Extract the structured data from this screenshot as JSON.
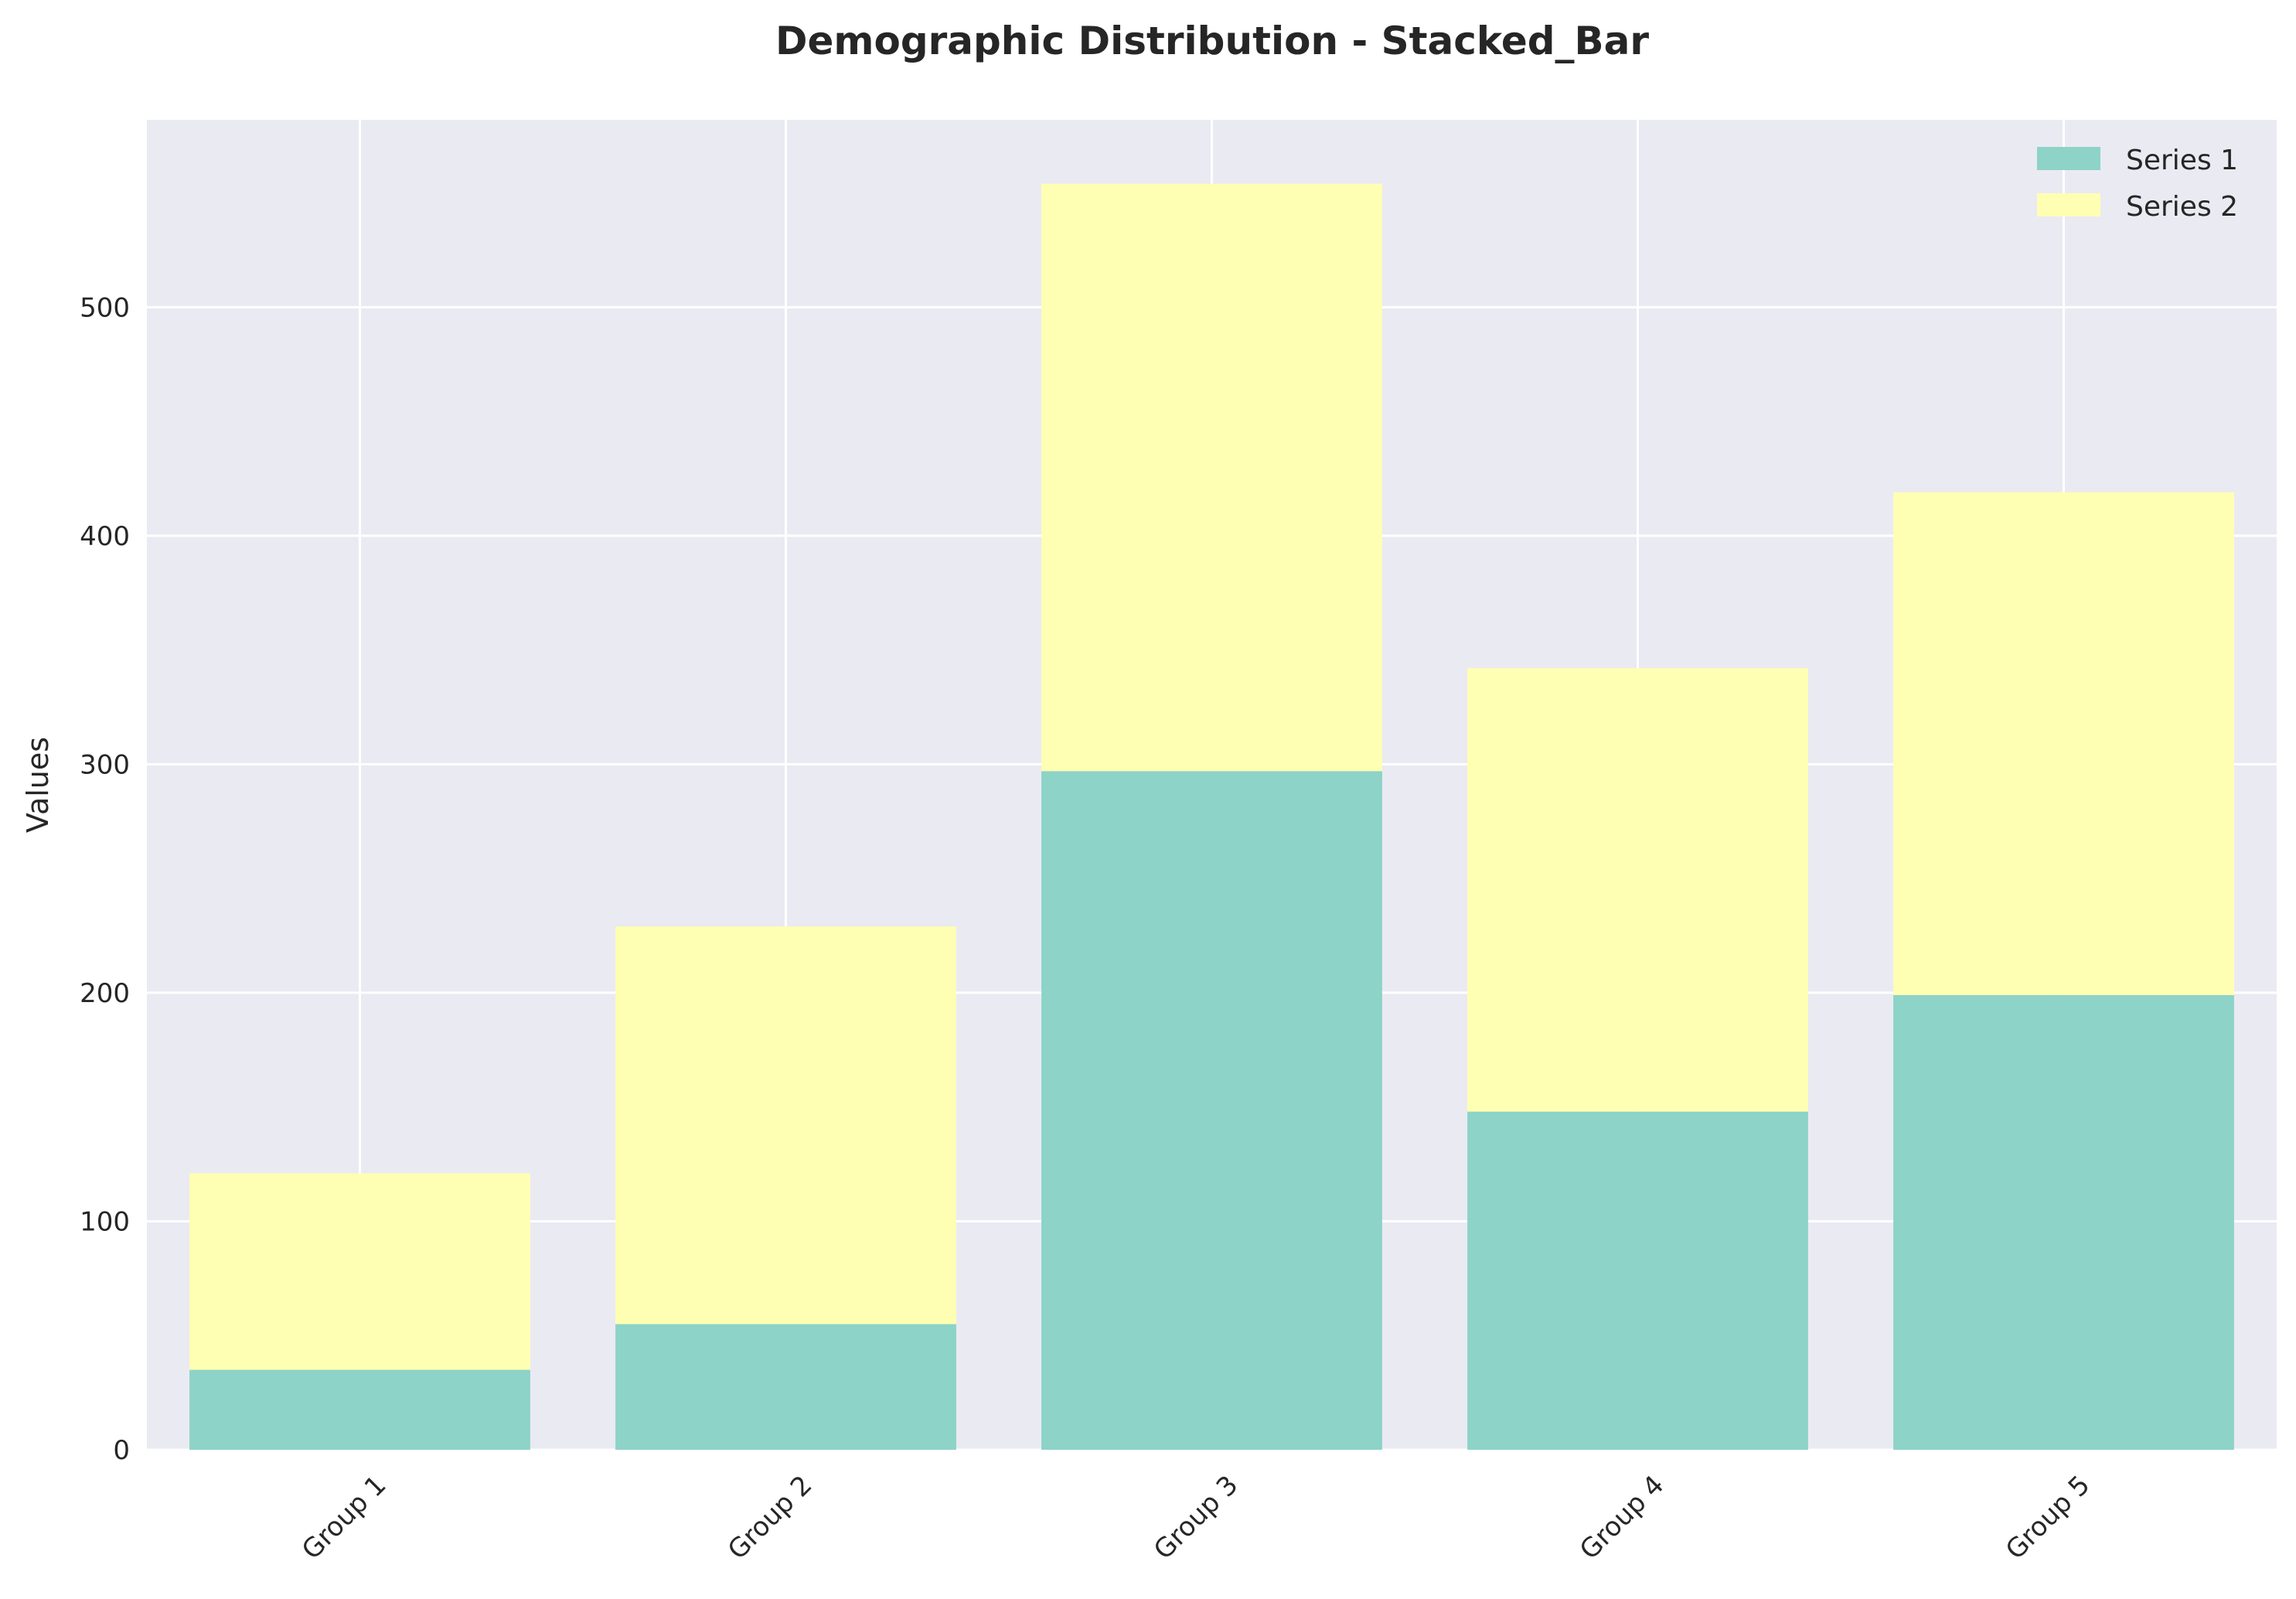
{
  "chart_data": {
    "type": "bar",
    "stacked": true,
    "title": "Demographic Distribution - Stacked_Bar",
    "xlabel": "",
    "ylabel": "Values",
    "categories": [
      "Group 1",
      "Group 2",
      "Group 3",
      "Group 4",
      "Group 5"
    ],
    "series": [
      {
        "name": "Series 1",
        "values": [
          35,
          55,
          297,
          148,
          199
        ],
        "color": "#8dd3c7"
      },
      {
        "name": "Series 2",
        "values": [
          86,
          174,
          257,
          194,
          220
        ],
        "color": "#ffffb3"
      }
    ],
    "ylim": [
      0,
      582
    ],
    "yticks": [
      "0",
      "100",
      "200",
      "300",
      "400",
      "500"
    ],
    "grid": true,
    "legend_position": "top-right",
    "background_color": "#eaeaf2",
    "gridline_color": "#ffffff",
    "xtick_rotation_deg": 45
  }
}
